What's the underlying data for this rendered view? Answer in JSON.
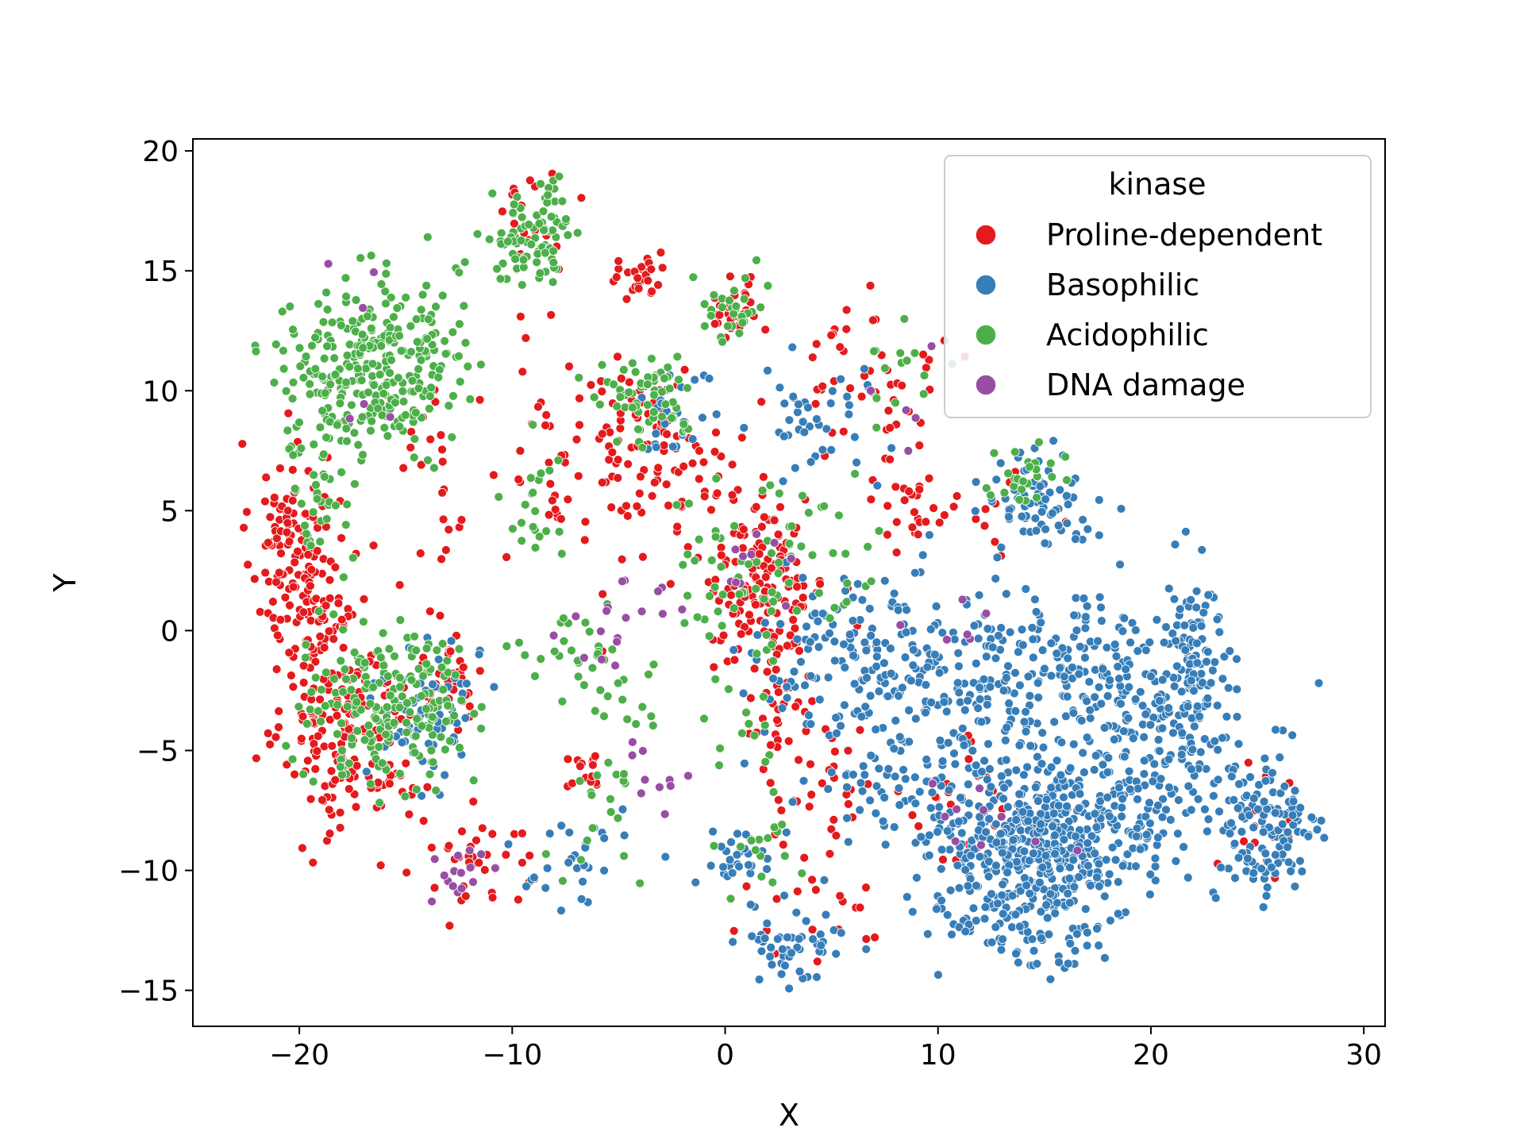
{
  "chart_data": {
    "type": "scatter",
    "title": "",
    "xlabel": "X",
    "ylabel": "Y",
    "xlim": [
      -25,
      31
    ],
    "ylim": [
      -16.5,
      20.5
    ],
    "xticks": [
      -20,
      -10,
      0,
      10,
      20,
      30
    ],
    "yticks": [
      20,
      15,
      10,
      5,
      0,
      -5,
      -10,
      -15
    ],
    "xtick_labels": [
      "−20",
      "−10",
      "0",
      "10",
      "20",
      "30"
    ],
    "ytick_labels": [
      "20",
      "15",
      "10",
      "5",
      "0",
      "−5",
      "−10",
      "−15"
    ],
    "grid": false,
    "legend": {
      "title": "kinase",
      "placement": "top-right",
      "entries": [
        "Proline-dependent",
        "Basophilic",
        "Acidophilic",
        "DNA damage"
      ]
    },
    "series": [
      {
        "name": "Proline-dependent",
        "color": "#e41a1c",
        "clusters": [
          {
            "cx": -20.5,
            "cy": 3.5,
            "sx": 0.9,
            "sy": 2.2,
            "n": 110
          },
          {
            "cx": -17.5,
            "cy": -4.5,
            "sx": 1.6,
            "sy": 2.0,
            "n": 170
          },
          {
            "cx": -19.0,
            "cy": 0.5,
            "sx": 0.8,
            "sy": 2.5,
            "n": 70
          },
          {
            "cx": -13.0,
            "cy": -2.0,
            "sx": 0.8,
            "sy": 1.0,
            "n": 40
          },
          {
            "cx": 1.8,
            "cy": 2.0,
            "sx": 1.5,
            "sy": 2.0,
            "n": 160
          },
          {
            "cx": -3.5,
            "cy": 8.0,
            "sx": 1.8,
            "sy": 1.5,
            "n": 90
          },
          {
            "cx": -4.0,
            "cy": 14.5,
            "sx": 0.7,
            "sy": 0.5,
            "n": 25
          },
          {
            "cx": 0.5,
            "cy": 13.5,
            "sx": 0.6,
            "sy": 0.8,
            "n": 30
          },
          {
            "cx": 7.0,
            "cy": 11.0,
            "sx": 1.5,
            "sy": 1.5,
            "n": 40
          },
          {
            "cx": 8.5,
            "cy": 6.0,
            "sx": 0.8,
            "sy": 1.5,
            "n": 30
          },
          {
            "cx": -9.0,
            "cy": 17.0,
            "sx": 1.0,
            "sy": 1.0,
            "n": 20
          },
          {
            "cx": -8.0,
            "cy": 8.0,
            "sx": 1.2,
            "sy": 2.0,
            "n": 25
          },
          {
            "cx": -11.5,
            "cy": -9.5,
            "sx": 1.5,
            "sy": 1.0,
            "n": 35
          },
          {
            "cx": -6.5,
            "cy": -6.0,
            "sx": 0.6,
            "sy": 0.5,
            "n": 15
          },
          {
            "cx": 2.5,
            "cy": -3.5,
            "sx": 1.0,
            "sy": 2.0,
            "n": 35
          },
          {
            "cx": 5.0,
            "cy": -6.5,
            "sx": 1.2,
            "sy": 1.5,
            "n": 30
          },
          {
            "cx": 11.0,
            "cy": -7.5,
            "sx": 1.2,
            "sy": 1.8,
            "n": 25
          },
          {
            "cx": 25.0,
            "cy": -8.0,
            "sx": 1.0,
            "sy": 1.5,
            "n": 20
          },
          {
            "cx": 12.5,
            "cy": 5.0,
            "sx": 1.2,
            "sy": 0.7,
            "n": 15
          },
          {
            "cx": -12.0,
            "cy": 6.0,
            "sx": 3.5,
            "sy": 3.0,
            "n": 40
          },
          {
            "cx": 4.0,
            "cy": -12.0,
            "sx": 2.5,
            "sy": 1.2,
            "n": 20
          }
        ]
      },
      {
        "name": "Basophilic",
        "color": "#377eb8",
        "clusters": [
          {
            "cx": 15.0,
            "cy": -9.0,
            "sx": 2.5,
            "sy": 1.6,
            "n": 500
          },
          {
            "cx": 20.0,
            "cy": -5.0,
            "sx": 2.5,
            "sy": 2.0,
            "n": 180
          },
          {
            "cx": 22.0,
            "cy": -1.0,
            "sx": 0.7,
            "sy": 2.5,
            "n": 90
          },
          {
            "cx": 25.5,
            "cy": -8.5,
            "sx": 1.3,
            "sy": 1.5,
            "n": 130
          },
          {
            "cx": 10.0,
            "cy": -3.0,
            "sx": 3.0,
            "sy": 2.5,
            "n": 200
          },
          {
            "cx": 17.0,
            "cy": -1.5,
            "sx": 3.0,
            "sy": 1.5,
            "n": 150
          },
          {
            "cx": 5.5,
            "cy": -1.0,
            "sx": 2.0,
            "sy": 1.5,
            "n": 100
          },
          {
            "cx": 14.5,
            "cy": 5.5,
            "sx": 1.3,
            "sy": 1.0,
            "n": 80
          },
          {
            "cx": 3.5,
            "cy": -13.0,
            "sx": 1.2,
            "sy": 0.8,
            "n": 50
          },
          {
            "cx": 0.5,
            "cy": -9.5,
            "sx": 1.0,
            "sy": 0.7,
            "n": 30
          },
          {
            "cx": -7.0,
            "cy": -9.5,
            "sx": 1.0,
            "sy": 1.0,
            "n": 30
          },
          {
            "cx": -14.0,
            "cy": -3.5,
            "sx": 1.3,
            "sy": 1.5,
            "n": 60
          },
          {
            "cx": 4.0,
            "cy": 9.0,
            "sx": 1.5,
            "sy": 2.0,
            "n": 40
          },
          {
            "cx": -2.5,
            "cy": 9.5,
            "sx": 0.8,
            "sy": 1.0,
            "n": 25
          },
          {
            "cx": 8.0,
            "cy": -7.5,
            "sx": 1.5,
            "sy": 1.5,
            "n": 35
          },
          {
            "cx": 12.5,
            "cy": -12.0,
            "sx": 1.5,
            "sy": 0.8,
            "n": 30
          },
          {
            "cx": 15.0,
            "cy": -13.0,
            "sx": 1.5,
            "sy": 0.6,
            "n": 25
          }
        ]
      },
      {
        "name": "Acidophilic",
        "color": "#4daf4a",
        "clusters": [
          {
            "cx": -16.5,
            "cy": 11.0,
            "sx": 2.0,
            "sy": 1.8,
            "n": 300
          },
          {
            "cx": -15.0,
            "cy": -3.0,
            "sx": 1.5,
            "sy": 1.5,
            "n": 160
          },
          {
            "cx": -9.0,
            "cy": 16.3,
            "sx": 1.1,
            "sy": 1.0,
            "n": 90
          },
          {
            "cx": -19.0,
            "cy": 6.0,
            "sx": 1.0,
            "sy": 1.5,
            "n": 40
          },
          {
            "cx": -3.5,
            "cy": 9.8,
            "sx": 1.2,
            "sy": 0.9,
            "n": 60
          },
          {
            "cx": -6.0,
            "cy": -1.5,
            "sx": 2.0,
            "sy": 1.0,
            "n": 40
          },
          {
            "cx": 0.5,
            "cy": 13.5,
            "sx": 0.8,
            "sy": 0.9,
            "n": 30
          },
          {
            "cx": 14.0,
            "cy": 6.5,
            "sx": 0.9,
            "sy": 0.6,
            "n": 25
          },
          {
            "cx": 0.0,
            "cy": 2.5,
            "sx": 1.5,
            "sy": 1.5,
            "n": 40
          },
          {
            "cx": 4.0,
            "cy": 4.0,
            "sx": 2.0,
            "sy": 1.5,
            "n": 30
          },
          {
            "cx": -9.0,
            "cy": 5.0,
            "sx": 1.0,
            "sy": 1.2,
            "n": 20
          },
          {
            "cx": -5.0,
            "cy": -7.5,
            "sx": 1.5,
            "sy": 1.5,
            "n": 20
          },
          {
            "cx": 1.5,
            "cy": -9.0,
            "sx": 1.0,
            "sy": 0.8,
            "n": 15
          },
          {
            "cx": 8.0,
            "cy": 11.0,
            "sx": 1.0,
            "sy": 1.0,
            "n": 15
          },
          {
            "cx": -18.5,
            "cy": -2.5,
            "sx": 1.0,
            "sy": 2.0,
            "n": 40
          },
          {
            "cx": 2.0,
            "cy": -2.5,
            "sx": 1.3,
            "sy": 1.8,
            "n": 20
          }
        ]
      },
      {
        "name": "DNA damage",
        "color": "#984ea3",
        "clusters": [
          {
            "cx": -12.5,
            "cy": -10.2,
            "sx": 0.8,
            "sy": 0.6,
            "n": 15
          },
          {
            "cx": -3.5,
            "cy": -6.0,
            "sx": 0.8,
            "sy": 1.0,
            "n": 10
          },
          {
            "cx": -4.0,
            "cy": 1.0,
            "sx": 1.5,
            "sy": 1.0,
            "n": 12
          },
          {
            "cx": 1.5,
            "cy": 2.5,
            "sx": 1.2,
            "sy": 1.2,
            "n": 10
          },
          {
            "cx": 13.0,
            "cy": -8.5,
            "sx": 2.0,
            "sy": 1.0,
            "n": 10
          },
          {
            "cx": 9.0,
            "cy": 8.0,
            "sx": 1.0,
            "sy": 2.0,
            "n": 5
          },
          {
            "cx": -17.5,
            "cy": 11.5,
            "sx": 1.5,
            "sy": 2.5,
            "n": 6
          },
          {
            "cx": 12.0,
            "cy": 0.3,
            "sx": 2.0,
            "sy": 0.7,
            "n": 6
          },
          {
            "cx": -6.0,
            "cy": -0.5,
            "sx": 1.0,
            "sy": 0.6,
            "n": 6
          }
        ]
      }
    ]
  }
}
